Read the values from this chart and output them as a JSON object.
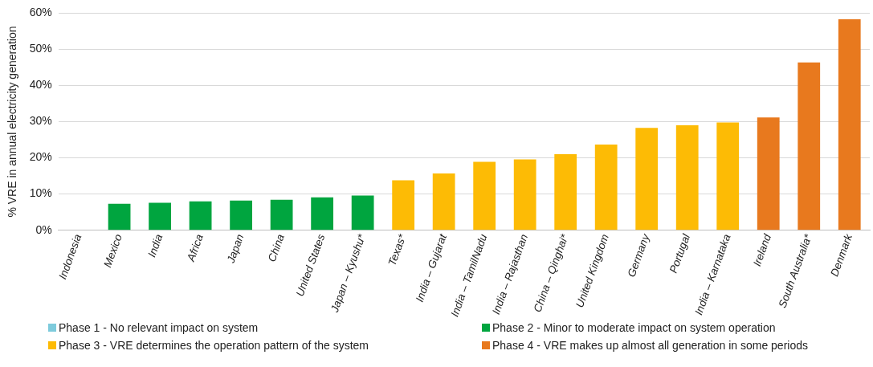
{
  "chart_data": {
    "type": "bar",
    "ylabel": "% VRE in annual electricity generation",
    "categories": [
      "Indonesia",
      "Mexico",
      "India",
      "Africa",
      "Japan",
      "China",
      "United States",
      "Japan – Kyushu*",
      "Texas*",
      "India – Gujarat",
      "India – TamilNadu",
      "India – Rajasthan",
      "China – Qinghai*",
      "United Kingdom",
      "Germany",
      "Portugal",
      "India – Karnataka",
      "Ireland",
      "South Australia*",
      "Denmark"
    ],
    "series": [
      {
        "name": "Phase 1 - No relevant impact on system",
        "color": "#7ecbdc",
        "values": [
          0,
          null,
          null,
          null,
          null,
          null,
          null,
          null,
          null,
          null,
          null,
          null,
          null,
          null,
          null,
          null,
          null,
          null,
          null,
          null
        ]
      },
      {
        "name": "Phase 2 - Minor to moderate impact on system operation",
        "color": "#00a53f",
        "values": [
          null,
          7.3,
          7.6,
          8.0,
          8.2,
          8.4,
          9.1,
          9.6,
          null,
          null,
          null,
          null,
          null,
          null,
          null,
          null,
          null,
          null,
          null,
          null
        ]
      },
      {
        "name": "Phase 3 - VRE determines the operation pattern of the system",
        "color": "#fdbb05",
        "values": [
          null,
          null,
          null,
          null,
          null,
          null,
          null,
          null,
          13.8,
          15.7,
          18.9,
          19.6,
          21.0,
          23.7,
          28.3,
          29.0,
          29.8,
          null,
          null,
          null
        ]
      },
      {
        "name": "Phase 4 - VRE makes up almost all generation in some periods",
        "color": "#e8791e",
        "values": [
          null,
          null,
          null,
          null,
          null,
          null,
          null,
          null,
          null,
          null,
          null,
          null,
          null,
          null,
          null,
          null,
          null,
          31.2,
          46.4,
          58.3
        ]
      }
    ],
    "ylim": [
      0,
      60
    ],
    "yticks": [
      {
        "value": 0,
        "label": "0%"
      },
      {
        "value": 10,
        "label": "10%"
      },
      {
        "value": 20,
        "label": "20%"
      },
      {
        "value": 30,
        "label": "30%"
      },
      {
        "value": 40,
        "label": "40%"
      },
      {
        "value": 50,
        "label": "50%"
      },
      {
        "value": 60,
        "label": "60%"
      }
    ],
    "grid": "y",
    "legend": "bottom",
    "stacked": true
  }
}
